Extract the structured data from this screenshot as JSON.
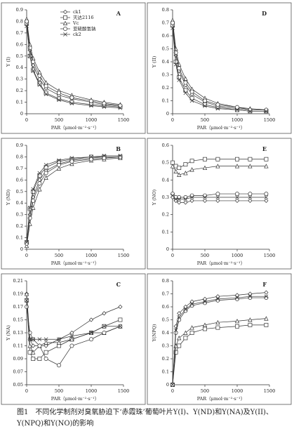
{
  "chart_data": [
    {
      "type": "line",
      "label": "A",
      "ylabel": "Y (I)",
      "xlabel": "PAR（μmol·m⁻²·s⁻¹）",
      "legend": "upper center",
      "x": [
        0,
        50,
        100,
        200,
        300,
        500,
        700,
        1000,
        1200,
        1450
      ],
      "xlim": [
        0,
        1500
      ],
      "xticks": [
        0,
        500,
        1000,
        1500
      ],
      "ylim": [
        0,
        0.9
      ],
      "yticks": [
        0,
        0.1,
        0.2,
        0.3,
        0.4,
        0.5,
        0.6,
        0.7,
        0.8,
        0.9
      ],
      "series": [
        {
          "name": "ck1",
          "color": "#333333",
          "marker": "diamond",
          "values": [
            0.8,
            0.55,
            0.42,
            0.3,
            0.22,
            0.16,
            0.13,
            0.1,
            0.08,
            0.07
          ]
        },
        {
          "name": "灭达2116",
          "color": "#333333",
          "marker": "square",
          "values": [
            0.78,
            0.5,
            0.38,
            0.26,
            0.18,
            0.13,
            0.1,
            0.08,
            0.07,
            0.06
          ]
        },
        {
          "name": "Vc",
          "color": "#333333",
          "marker": "triangle",
          "values": [
            0.82,
            0.6,
            0.48,
            0.36,
            0.27,
            0.2,
            0.16,
            0.12,
            0.1,
            0.08
          ]
        },
        {
          "name": "亚硫酸氢钠",
          "color": "#333333",
          "marker": "circle",
          "values": [
            0.8,
            0.57,
            0.45,
            0.33,
            0.24,
            0.18,
            0.14,
            0.11,
            0.09,
            0.07
          ]
        },
        {
          "name": "ck2",
          "color": "#333333",
          "marker": "x",
          "values": [
            0.76,
            0.5,
            0.37,
            0.25,
            0.17,
            0.12,
            0.09,
            0.07,
            0.06,
            0.05
          ]
        }
      ]
    },
    {
      "type": "line",
      "label": "D",
      "ylabel": "Y (II)",
      "xlabel": "PAR（μmol·m⁻²·s⁻¹）",
      "x": [
        0,
        50,
        100,
        200,
        300,
        500,
        700,
        1000,
        1200,
        1450
      ],
      "xlim": [
        0,
        1500
      ],
      "xticks": [
        0,
        500,
        1000,
        1500
      ],
      "ylim": [
        0,
        0.8
      ],
      "yticks": [
        0,
        0.1,
        0.2,
        0.3,
        0.4,
        0.5,
        0.6,
        0.7,
        0.8
      ],
      "series": [
        {
          "color": "#333333",
          "marker": "diamond",
          "values": [
            0.7,
            0.45,
            0.33,
            0.22,
            0.15,
            0.09,
            0.06,
            0.04,
            0.03,
            0.03
          ]
        },
        {
          "color": "#333333",
          "marker": "square",
          "values": [
            0.68,
            0.4,
            0.28,
            0.18,
            0.12,
            0.07,
            0.05,
            0.03,
            0.02,
            0.02
          ]
        },
        {
          "color": "#333333",
          "marker": "triangle",
          "values": [
            0.72,
            0.5,
            0.38,
            0.27,
            0.19,
            0.12,
            0.08,
            0.05,
            0.04,
            0.03
          ]
        },
        {
          "color": "#333333",
          "marker": "circle",
          "values": [
            0.7,
            0.47,
            0.35,
            0.24,
            0.17,
            0.1,
            0.07,
            0.05,
            0.03,
            0.03
          ]
        },
        {
          "color": "#333333",
          "marker": "x",
          "values": [
            0.66,
            0.38,
            0.26,
            0.16,
            0.1,
            0.06,
            0.04,
            0.03,
            0.02,
            0.02
          ]
        }
      ]
    },
    {
      "type": "line",
      "label": "B",
      "ylabel": "Y (ND)",
      "xlabel": "PAR（μmol·m⁻²·s⁻¹）",
      "x": [
        0,
        50,
        100,
        200,
        300,
        500,
        700,
        1000,
        1200,
        1450
      ],
      "xlim": [
        0,
        1500
      ],
      "xticks": [
        0,
        500,
        1000,
        1500
      ],
      "ylim": [
        0,
        0.9
      ],
      "yticks": [
        0,
        0.1,
        0.2,
        0.3,
        0.4,
        0.5,
        0.6,
        0.7,
        0.8,
        0.9
      ],
      "series": [
        {
          "color": "#333333",
          "marker": "diamond",
          "values": [
            0.05,
            0.3,
            0.45,
            0.6,
            0.68,
            0.74,
            0.77,
            0.79,
            0.8,
            0.8
          ]
        },
        {
          "color": "#333333",
          "marker": "square",
          "values": [
            0.06,
            0.35,
            0.5,
            0.64,
            0.71,
            0.76,
            0.78,
            0.8,
            0.8,
            0.8
          ]
        },
        {
          "color": "#333333",
          "marker": "triangle",
          "values": [
            0.03,
            0.22,
            0.36,
            0.52,
            0.62,
            0.7,
            0.74,
            0.77,
            0.78,
            0.79
          ]
        },
        {
          "color": "#333333",
          "marker": "circle",
          "values": [
            0.05,
            0.27,
            0.42,
            0.57,
            0.66,
            0.73,
            0.76,
            0.78,
            0.79,
            0.8
          ]
        },
        {
          "color": "#333333",
          "marker": "x",
          "values": [
            0.06,
            0.36,
            0.52,
            0.66,
            0.73,
            0.77,
            0.79,
            0.8,
            0.81,
            0.81
          ]
        }
      ]
    },
    {
      "type": "line",
      "label": "E",
      "ylabel": "Y (NO)",
      "xlabel": "PAR（μmol·m⁻²·s⁻¹）",
      "x": [
        0,
        50,
        100,
        200,
        300,
        500,
        700,
        1000,
        1200,
        1450
      ],
      "xlim": [
        0,
        1500
      ],
      "xticks": [
        0,
        500,
        1000,
        1500
      ],
      "ylim": [
        0,
        0.6
      ],
      "yticks": [
        0,
        0.1,
        0.2,
        0.3,
        0.4,
        0.5,
        0.6
      ],
      "series": [
        {
          "color": "#333333",
          "marker": "diamond",
          "values": [
            0.3,
            0.28,
            0.27,
            0.27,
            0.28,
            0.28,
            0.28,
            0.28,
            0.28,
            0.28
          ]
        },
        {
          "color": "#333333",
          "marker": "square",
          "values": [
            0.5,
            0.48,
            0.47,
            0.49,
            0.51,
            0.52,
            0.52,
            0.52,
            0.52,
            0.52
          ]
        },
        {
          "color": "#333333",
          "marker": "triangle",
          "values": [
            0.48,
            0.45,
            0.43,
            0.44,
            0.46,
            0.47,
            0.48,
            0.48,
            0.48,
            0.48
          ]
        },
        {
          "color": "#333333",
          "marker": "circle",
          "values": [
            0.32,
            0.3,
            0.3,
            0.3,
            0.31,
            0.31,
            0.32,
            0.32,
            0.32,
            0.32
          ]
        },
        {
          "color": "#333333",
          "marker": "x",
          "values": [
            0.31,
            0.29,
            0.29,
            0.29,
            0.3,
            0.3,
            0.3,
            0.3,
            0.3,
            0.3
          ]
        }
      ]
    },
    {
      "type": "line",
      "label": "C",
      "ylabel": "Y (NA)",
      "xlabel": "PAR（μmol·m⁻²·s⁻¹）",
      "x": [
        0,
        50,
        100,
        200,
        300,
        500,
        700,
        1000,
        1200,
        1450
      ],
      "xlim": [
        0,
        1500
      ],
      "xticks": [
        0,
        500,
        1000,
        1500
      ],
      "ylim": [
        0.05,
        0.21
      ],
      "yticks": [
        0.05,
        0.07,
        0.09,
        0.11,
        0.13,
        0.15,
        0.17,
        0.19,
        0.21
      ],
      "series": [
        {
          "color": "#333333",
          "marker": "diamond",
          "values": [
            0.19,
            0.12,
            0.11,
            0.11,
            0.11,
            0.12,
            0.13,
            0.15,
            0.16,
            0.17
          ]
        },
        {
          "color": "#333333",
          "marker": "square",
          "values": [
            0.18,
            0.1,
            0.09,
            0.09,
            0.1,
            0.11,
            0.12,
            0.13,
            0.14,
            0.15
          ]
        },
        {
          "color": "#333333",
          "marker": "triangle",
          "values": [
            0.19,
            0.11,
            0.1,
            0.11,
            0.115,
            0.115,
            0.12,
            0.13,
            0.13,
            0.14
          ]
        },
        {
          "color": "#333333",
          "marker": "circle",
          "values": [
            0.17,
            0.13,
            0.12,
            0.11,
            0.09,
            0.08,
            0.11,
            0.12,
            0.13,
            0.14
          ]
        },
        {
          "color": "#333333",
          "marker": "x",
          "values": [
            0.18,
            0.12,
            0.12,
            0.12,
            0.12,
            0.12,
            0.125,
            0.13,
            0.14,
            0.14
          ]
        }
      ]
    },
    {
      "type": "line",
      "label": "F",
      "ylabel": "Y(NPQ)",
      "xlabel": "PAR（μmol·m⁻²·s⁻¹）",
      "x": [
        0,
        50,
        100,
        200,
        300,
        500,
        700,
        1000,
        1200,
        1450
      ],
      "xlim": [
        0,
        1500
      ],
      "xticks": [
        0,
        500,
        1000,
        1500
      ],
      "ylim": [
        0,
        0.8
      ],
      "yticks": [
        0,
        0.1,
        0.2,
        0.3,
        0.4,
        0.5,
        0.6,
        0.7,
        0.8
      ],
      "series": [
        {
          "color": "#333333",
          "marker": "diamond",
          "values": [
            0,
            0.45,
            0.55,
            0.6,
            0.64,
            0.66,
            0.68,
            0.69,
            0.7,
            0.71
          ]
        },
        {
          "color": "#333333",
          "marker": "square",
          "values": [
            0,
            0.25,
            0.3,
            0.36,
            0.4,
            0.43,
            0.44,
            0.45,
            0.46,
            0.46
          ]
        },
        {
          "color": "#333333",
          "marker": "triangle",
          "values": [
            0,
            0.3,
            0.36,
            0.4,
            0.44,
            0.46,
            0.48,
            0.49,
            0.5,
            0.51
          ]
        },
        {
          "color": "#333333",
          "marker": "circle",
          "values": [
            0,
            0.4,
            0.5,
            0.57,
            0.61,
            0.63,
            0.65,
            0.66,
            0.67,
            0.67
          ]
        },
        {
          "color": "#333333",
          "marker": "x",
          "values": [
            0,
            0.42,
            0.52,
            0.58,
            0.62,
            0.64,
            0.66,
            0.67,
            0.68,
            0.68
          ]
        }
      ]
    }
  ],
  "caption": "图1　不同化学制剂对臭氧胁迫下‘赤霞珠’葡萄叶片Y(I)、Y(ND)和Y(NA)及Y(II)、Y(NPQ)和Y(NO)的影响"
}
